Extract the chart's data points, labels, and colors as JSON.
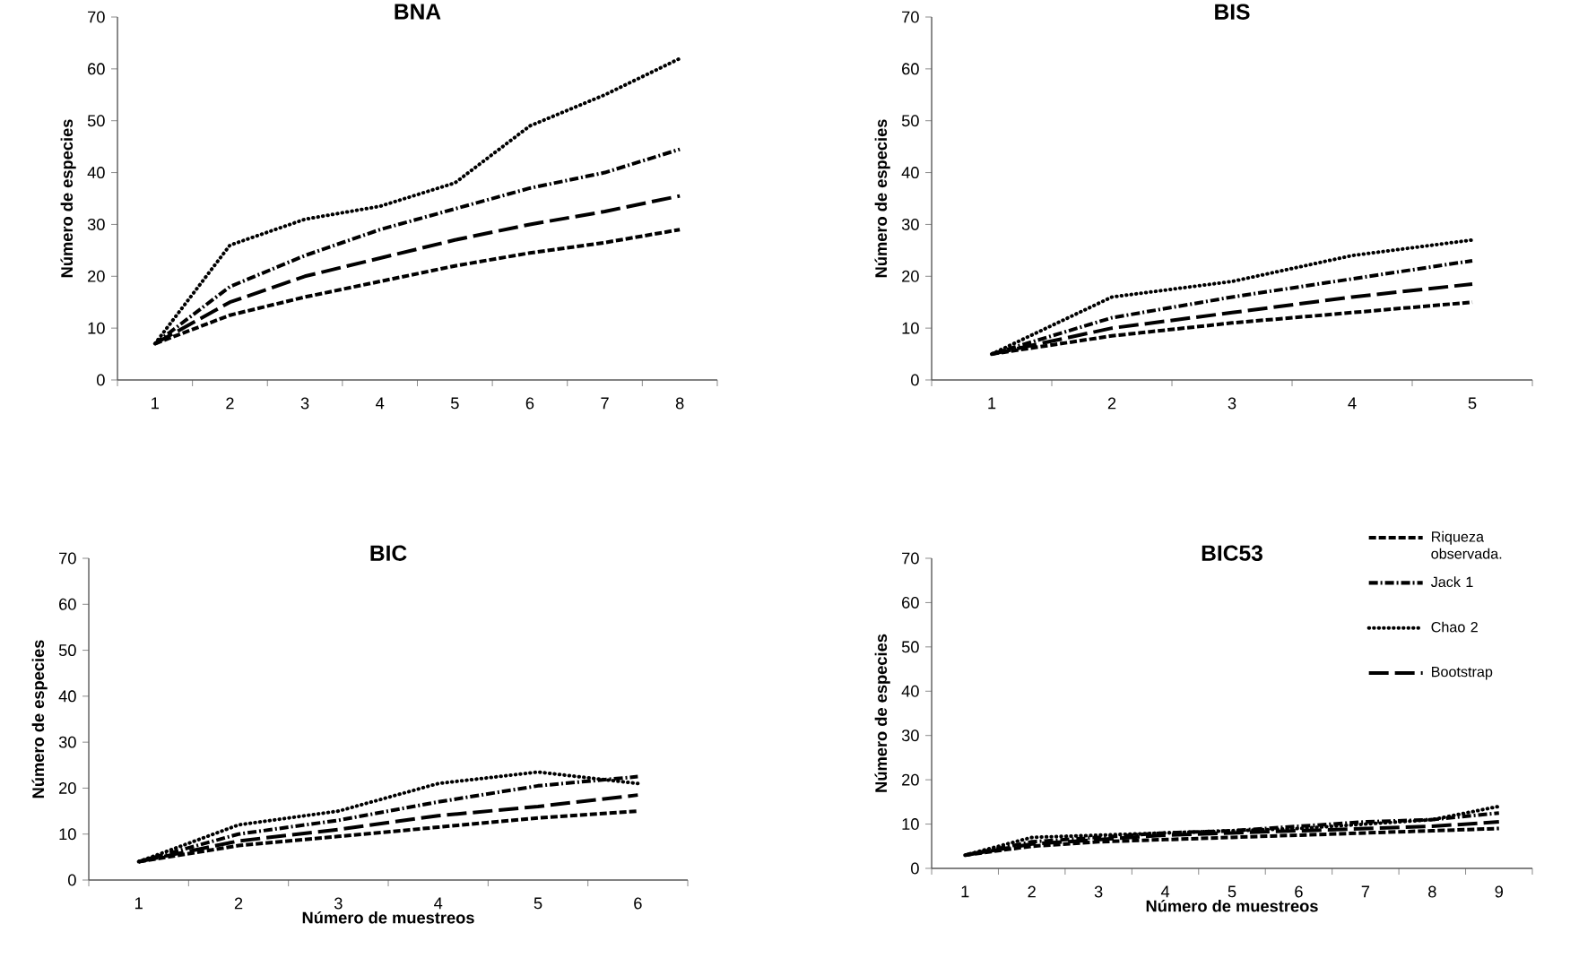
{
  "chart_data": [
    {
      "type": "line",
      "title": "BNA",
      "ylabel": "Número de especies",
      "categories": [
        "1",
        "2",
        "3",
        "4",
        "5",
        "6",
        "7",
        "8"
      ],
      "ylim": [
        0,
        70
      ],
      "yticks": [
        0,
        10,
        20,
        30,
        40,
        50,
        60,
        70
      ],
      "series": [
        {
          "color": "#000000",
          "line_style": "dashed",
          "values": [
            7,
            12.5,
            16,
            19,
            22,
            24.5,
            26.5,
            29
          ]
        },
        {
          "color": "#000000",
          "line_style": "dashdot",
          "values": [
            7,
            18,
            24,
            29,
            33,
            37,
            40,
            44.5
          ]
        },
        {
          "color": "#000000",
          "line_style": "dotted",
          "values": [
            7,
            26,
            31,
            33.5,
            38,
            49,
            55,
            62
          ]
        },
        {
          "color": "#000000",
          "line_style": "longdash",
          "values": [
            7,
            15,
            20,
            23.5,
            27,
            30,
            32.5,
            35.5
          ]
        }
      ]
    },
    {
      "type": "line",
      "title": "BIS",
      "ylabel": "Número de especies",
      "categories": [
        "1",
        "2",
        "3",
        "4",
        "5"
      ],
      "ylim": [
        0,
        70
      ],
      "yticks": [
        0,
        10,
        20,
        30,
        40,
        50,
        60,
        70
      ],
      "series": [
        {
          "color": "#000000",
          "line_style": "dashed",
          "values": [
            5,
            8.5,
            11,
            13,
            15
          ]
        },
        {
          "color": "#000000",
          "line_style": "dashdot",
          "values": [
            5,
            12,
            16,
            19.5,
            23
          ]
        },
        {
          "color": "#000000",
          "line_style": "dotted",
          "values": [
            5,
            16,
            19,
            24,
            27
          ]
        },
        {
          "color": "#000000",
          "line_style": "longdash",
          "values": [
            5,
            10,
            13,
            16,
            18.5
          ]
        }
      ]
    },
    {
      "type": "line",
      "title": "BIC",
      "ylabel": "Número de especies",
      "xlabel": "Número de muestreos",
      "categories": [
        "1",
        "2",
        "3",
        "4",
        "5",
        "6"
      ],
      "ylim": [
        0,
        70
      ],
      "yticks": [
        0,
        10,
        20,
        30,
        40,
        50,
        60,
        70
      ],
      "series": [
        {
          "color": "#000000",
          "line_style": "dashed",
          "values": [
            4,
            7.5,
            9.5,
            11.5,
            13.5,
            15
          ]
        },
        {
          "color": "#000000",
          "line_style": "dashdot",
          "values": [
            4,
            10,
            13,
            17,
            20.5,
            22.5
          ]
        },
        {
          "color": "#000000",
          "line_style": "dotted",
          "values": [
            4,
            12,
            15,
            21,
            23.5,
            21
          ]
        },
        {
          "color": "#000000",
          "line_style": "longdash",
          "values": [
            4,
            8.5,
            11,
            14,
            16,
            18.5
          ]
        }
      ]
    },
    {
      "type": "line",
      "title": "BIC53",
      "ylabel": "Número de especies",
      "xlabel": "Número de muestreos",
      "categories": [
        "1",
        "2",
        "3",
        "4",
        "5",
        "6",
        "7",
        "8",
        "9"
      ],
      "ylim": [
        0,
        70
      ],
      "yticks": [
        0,
        10,
        20,
        30,
        40,
        50,
        60,
        70
      ],
      "legend": "top right",
      "series": [
        {
          "name": "Riqueza observada.",
          "color": "#000000",
          "line_style": "dashed",
          "values": [
            3,
            5,
            6,
            6.5,
            7,
            7.5,
            8,
            8.5,
            9
          ]
        },
        {
          "name": "Jack 1",
          "color": "#000000",
          "line_style": "dashdot",
          "values": [
            3,
            6,
            7,
            8,
            8.5,
            9.5,
            10.5,
            11,
            12.5
          ]
        },
        {
          "name": "Chao 2",
          "color": "#000000",
          "line_style": "dotted",
          "values": [
            3,
            7,
            7.5,
            8,
            8.5,
            9,
            10,
            11,
            14
          ]
        },
        {
          "name": "Bootstrap",
          "color": "#000000",
          "line_style": "longdash",
          "values": [
            3,
            5.5,
            6.5,
            7.5,
            8,
            8.5,
            9,
            9.5,
            10.5
          ]
        }
      ]
    }
  ]
}
